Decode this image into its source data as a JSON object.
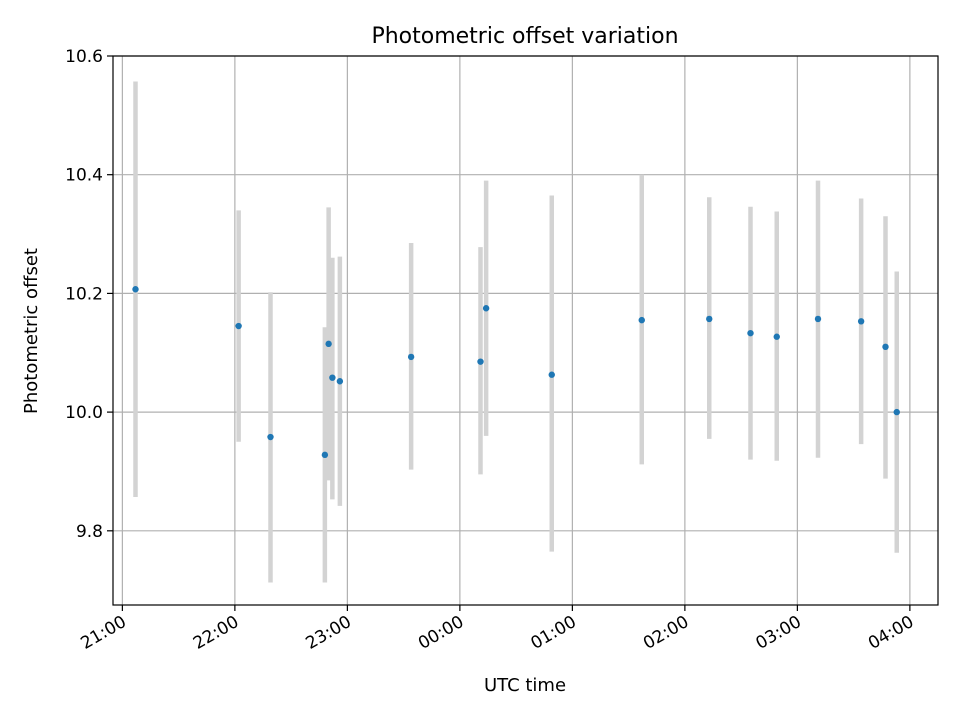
{
  "chart_data": {
    "type": "scatter",
    "title": "Photometric offset variation",
    "xlabel": "UTC time",
    "ylabel": "Photometric offset",
    "grid": true,
    "ylim": [
      9.675,
      10.6
    ],
    "xlim": [
      "20:55",
      "04:15"
    ],
    "xticks": [
      "21:00",
      "22:00",
      "23:00",
      "00:00",
      "01:00",
      "02:00",
      "03:00",
      "04:00"
    ],
    "yticks": [
      "9.8",
      "10.0",
      "10.2",
      "10.4",
      "10.6"
    ],
    "marker_color": "#1f77b4",
    "errorbar_color": "#d3d3d3",
    "points": [
      {
        "x": "21:07",
        "y": 10.207,
        "ylow": 9.857,
        "yhigh": 10.557
      },
      {
        "x": "22:02",
        "y": 10.145,
        "ylow": 9.95,
        "yhigh": 10.34
      },
      {
        "x": "22:19",
        "y": 9.958,
        "ylow": 9.713,
        "yhigh": 10.202
      },
      {
        "x": "22:48",
        "y": 9.928,
        "ylow": 9.713,
        "yhigh": 10.143
      },
      {
        "x": "22:50",
        "y": 10.115,
        "ylow": 9.885,
        "yhigh": 10.345
      },
      {
        "x": "22:52",
        "y": 10.058,
        "ylow": 9.853,
        "yhigh": 10.26
      },
      {
        "x": "22:56",
        "y": 10.052,
        "ylow": 9.842,
        "yhigh": 10.262
      },
      {
        "x": "23:34",
        "y": 10.093,
        "ylow": 9.903,
        "yhigh": 10.285
      },
      {
        "x": "00:11",
        "y": 10.085,
        "ylow": 9.895,
        "yhigh": 10.278
      },
      {
        "x": "00:14",
        "y": 10.175,
        "ylow": 9.96,
        "yhigh": 10.39
      },
      {
        "x": "00:49",
        "y": 10.063,
        "ylow": 9.765,
        "yhigh": 10.365
      },
      {
        "x": "01:37",
        "y": 10.155,
        "ylow": 9.912,
        "yhigh": 10.4
      },
      {
        "x": "02:13",
        "y": 10.157,
        "ylow": 9.955,
        "yhigh": 10.362
      },
      {
        "x": "02:35",
        "y": 10.133,
        "ylow": 9.92,
        "yhigh": 10.346
      },
      {
        "x": "02:49",
        "y": 10.127,
        "ylow": 9.918,
        "yhigh": 10.338
      },
      {
        "x": "03:11",
        "y": 10.157,
        "ylow": 9.923,
        "yhigh": 10.39
      },
      {
        "x": "03:34",
        "y": 10.153,
        "ylow": 9.946,
        "yhigh": 10.36
      },
      {
        "x": "03:47",
        "y": 10.11,
        "ylow": 9.888,
        "yhigh": 10.33
      },
      {
        "x": "03:53",
        "y": 10.0,
        "ylow": 9.763,
        "yhigh": 10.237
      }
    ]
  }
}
